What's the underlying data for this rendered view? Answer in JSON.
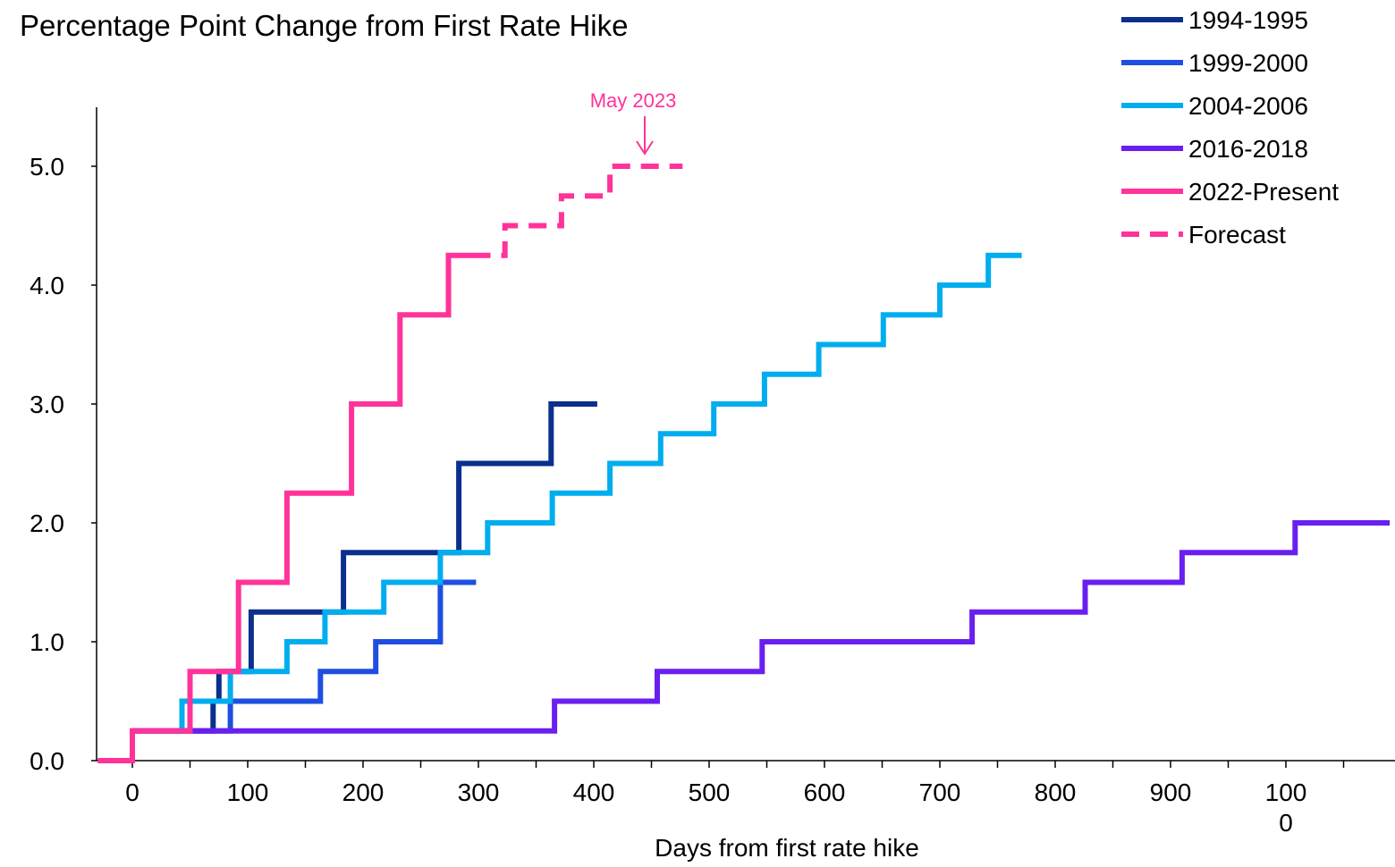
{
  "chart_data": {
    "type": "line",
    "title": "Percentage Point Change from First Rate Hike",
    "xlabel": "Days from first rate hike",
    "ylabel": "",
    "xlim": [
      -30,
      1090
    ],
    "ylim": [
      0,
      5.5
    ],
    "x_ticks": [
      "0",
      "100",
      "200",
      "300",
      "400",
      "500",
      "600",
      "700",
      "800",
      "900",
      "100\n0"
    ],
    "y_ticks": [
      "0.0",
      "1.0",
      "2.0",
      "3.0",
      "4.0",
      "5.0"
    ],
    "grid": false,
    "legend_position": "top-right",
    "series": [
      {
        "name": "1994-1995",
        "color": "#0a2f8c",
        "dashed": false,
        "points": [
          [
            0,
            0.25
          ],
          [
            70,
            0.25
          ],
          [
            70,
            0.5
          ],
          [
            75,
            0.5
          ],
          [
            75,
            0.75
          ],
          [
            103,
            0.75
          ],
          [
            103,
            1.25
          ],
          [
            183,
            1.25
          ],
          [
            183,
            1.75
          ],
          [
            283,
            1.75
          ],
          [
            283,
            2.5
          ],
          [
            363,
            2.5
          ],
          [
            363,
            3.0
          ],
          [
            403,
            3.0
          ]
        ]
      },
      {
        "name": "1999-2000",
        "color": "#1f4fe0",
        "dashed": false,
        "points": [
          [
            0,
            0.25
          ],
          [
            85,
            0.25
          ],
          [
            85,
            0.5
          ],
          [
            163,
            0.5
          ],
          [
            163,
            0.75
          ],
          [
            211,
            0.75
          ],
          [
            211,
            1.0
          ],
          [
            267,
            1.0
          ],
          [
            267,
            1.5
          ],
          [
            298,
            1.5
          ]
        ]
      },
      {
        "name": "2004-2006",
        "color": "#00adef",
        "dashed": false,
        "points": [
          [
            0,
            0.25
          ],
          [
            43,
            0.25
          ],
          [
            43,
            0.5
          ],
          [
            85,
            0.5
          ],
          [
            85,
            0.75
          ],
          [
            134,
            0.75
          ],
          [
            134,
            1.0
          ],
          [
            167,
            1.0
          ],
          [
            167,
            1.25
          ],
          [
            218,
            1.25
          ],
          [
            218,
            1.5
          ],
          [
            267,
            1.5
          ],
          [
            267,
            1.75
          ],
          [
            308,
            1.75
          ],
          [
            308,
            2.0
          ],
          [
            364,
            2.0
          ],
          [
            364,
            2.25
          ],
          [
            414,
            2.25
          ],
          [
            414,
            2.5
          ],
          [
            458,
            2.5
          ],
          [
            458,
            2.75
          ],
          [
            504,
            2.75
          ],
          [
            504,
            3.0
          ],
          [
            548,
            3.0
          ],
          [
            548,
            3.25
          ],
          [
            595,
            3.25
          ],
          [
            595,
            3.5
          ],
          [
            651,
            3.5
          ],
          [
            651,
            3.75
          ],
          [
            700,
            3.75
          ],
          [
            700,
            4.0
          ],
          [
            742,
            4.0
          ],
          [
            742,
            4.25
          ],
          [
            771,
            4.25
          ]
        ]
      },
      {
        "name": "2016-2018",
        "color": "#6a1ff0",
        "dashed": false,
        "points": [
          [
            0,
            0.25
          ],
          [
            366,
            0.25
          ],
          [
            366,
            0.5
          ],
          [
            455,
            0.5
          ],
          [
            455,
            0.75
          ],
          [
            546,
            0.75
          ],
          [
            546,
            1.0
          ],
          [
            728,
            1.0
          ],
          [
            728,
            1.25
          ],
          [
            826,
            1.25
          ],
          [
            826,
            1.5
          ],
          [
            910,
            1.5
          ],
          [
            910,
            1.75
          ],
          [
            1008,
            1.75
          ],
          [
            1008,
            2.0
          ],
          [
            1090,
            2.0
          ]
        ]
      },
      {
        "name": "2022-Present",
        "color": "#ff3399",
        "dashed": false,
        "points": [
          [
            -30,
            0
          ],
          [
            0,
            0
          ],
          [
            0,
            0.25
          ],
          [
            50,
            0.25
          ],
          [
            50,
            0.75
          ],
          [
            92,
            0.75
          ],
          [
            92,
            1.5
          ],
          [
            134,
            1.5
          ],
          [
            134,
            2.25
          ],
          [
            190,
            2.25
          ],
          [
            190,
            3.0
          ],
          [
            232,
            3.0
          ],
          [
            232,
            3.75
          ],
          [
            274,
            3.75
          ],
          [
            274,
            4.25
          ],
          [
            295,
            4.25
          ]
        ]
      },
      {
        "name": "Forecast",
        "color": "#ff3399",
        "dashed": true,
        "points": [
          [
            295,
            4.25
          ],
          [
            323,
            4.25
          ],
          [
            323,
            4.5
          ],
          [
            372,
            4.5
          ],
          [
            372,
            4.75
          ],
          [
            414,
            4.75
          ],
          [
            414,
            5.0
          ],
          [
            477,
            5.0
          ]
        ]
      }
    ],
    "annotations": [
      {
        "text": "May 2023",
        "color": "#ff3399",
        "x": 445,
        "y": 5.0
      }
    ]
  }
}
